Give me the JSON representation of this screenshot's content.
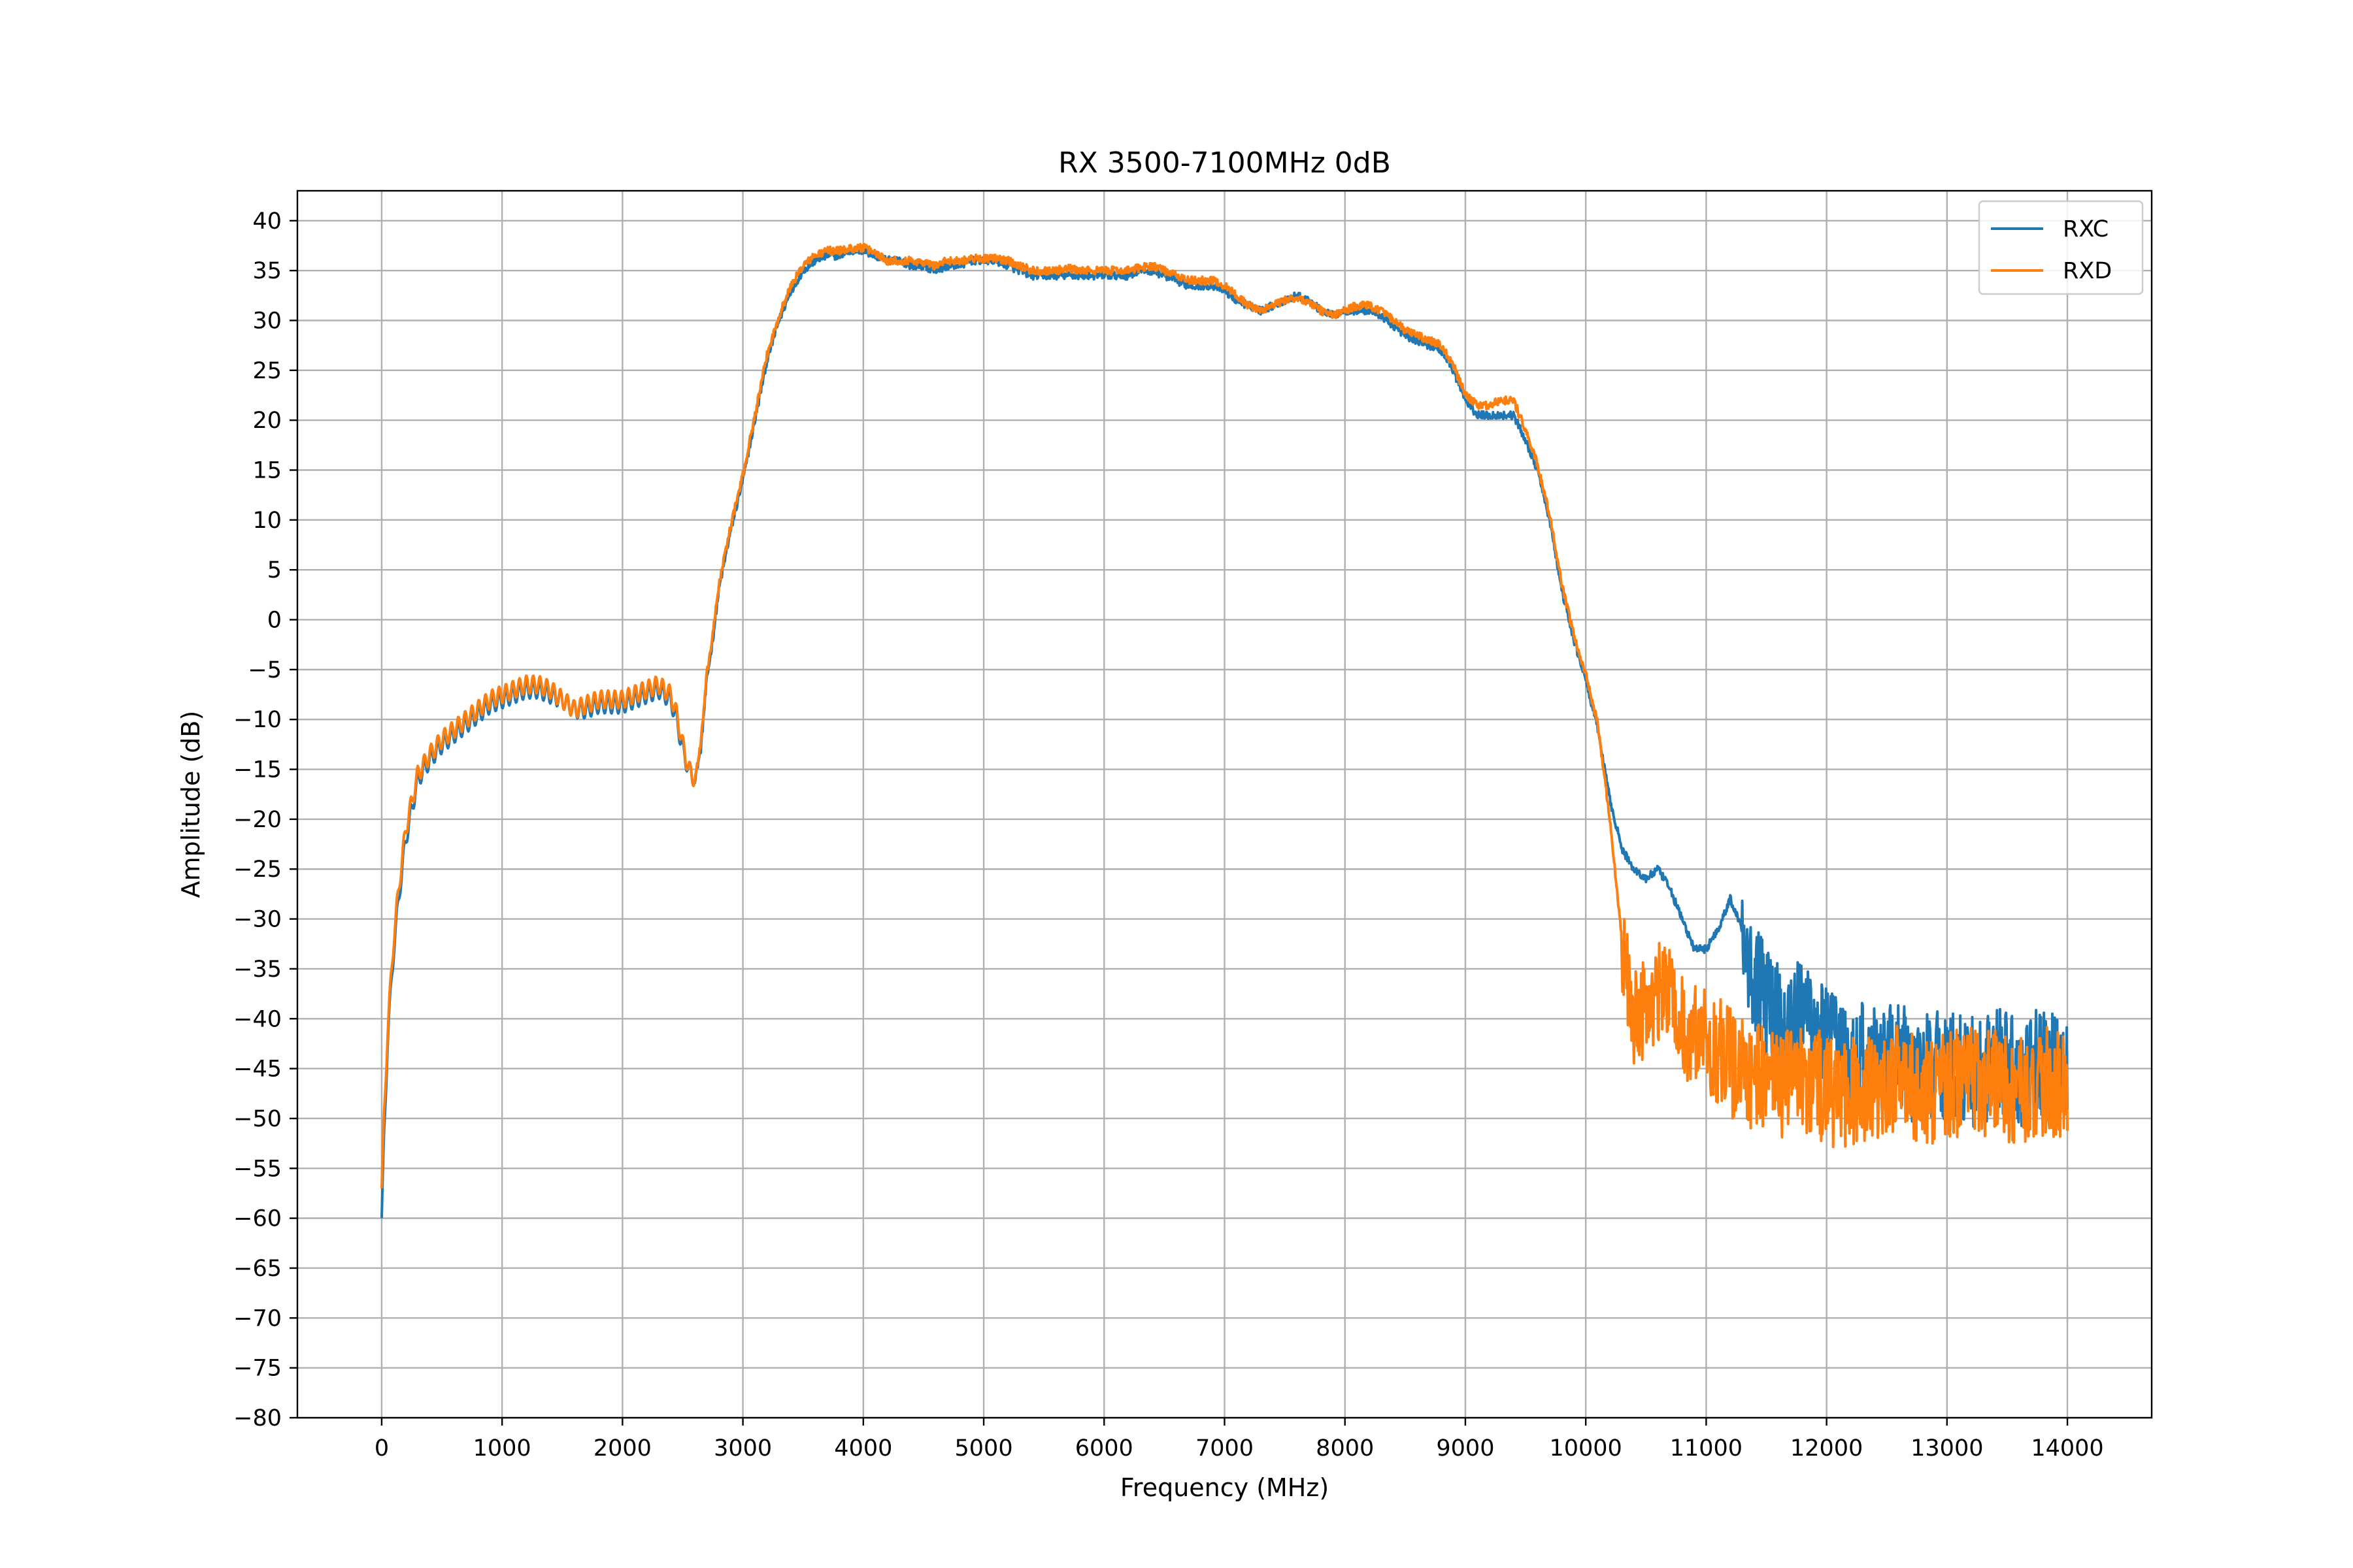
{
  "chart_data": {
    "type": "line",
    "title": "RX 3500-7100MHz 0dB",
    "xlabel": "Frequency (MHz)",
    "ylabel": "Amplitude (dB)",
    "xlim": [
      -700,
      14700
    ],
    "ylim": [
      -80,
      43
    ],
    "xticks": [
      0,
      1000,
      2000,
      3000,
      4000,
      5000,
      6000,
      7000,
      8000,
      9000,
      10000,
      11000,
      12000,
      13000,
      14000
    ],
    "xtick_labels": [
      "0",
      "1000",
      "2000",
      "3000",
      "4000",
      "5000",
      "6000",
      "7000",
      "8000",
      "9000",
      "10000",
      "11000",
      "12000",
      "13000",
      "14000"
    ],
    "yticks": [
      40,
      35,
      30,
      25,
      20,
      15,
      10,
      5,
      0,
      -5,
      -10,
      -15,
      -20,
      -25,
      -30,
      -35,
      -40,
      -45,
      -50,
      -55,
      -60,
      -65,
      -70,
      -75,
      -80
    ],
    "ytick_labels": [
      "40",
      "35",
      "30",
      "25",
      "20",
      "15",
      "10",
      "5",
      "0",
      "−5",
      "−10",
      "−15",
      "−20",
      "−25",
      "−30",
      "−35",
      "−40",
      "−45",
      "−50",
      "−55",
      "−60",
      "−65",
      "−70",
      "−75",
      "−80"
    ],
    "grid": true,
    "legend_position": "top-right",
    "series": [
      {
        "name": "RXC",
        "color": "#1f77b4",
        "points": [
          [
            0,
            -60
          ],
          [
            20,
            -52
          ],
          [
            50,
            -42
          ],
          [
            100,
            -33
          ],
          [
            150,
            -27
          ],
          [
            200,
            -22
          ],
          [
            300,
            -16
          ],
          [
            400,
            -14
          ],
          [
            500,
            -12.5
          ],
          [
            600,
            -11.5
          ],
          [
            700,
            -10.5
          ],
          [
            800,
            -9.5
          ],
          [
            900,
            -8.5
          ],
          [
            1000,
            -8
          ],
          [
            1100,
            -7.5
          ],
          [
            1200,
            -7
          ],
          [
            1300,
            -7
          ],
          [
            1400,
            -7.5
          ],
          [
            1500,
            -8
          ],
          [
            1600,
            -9
          ],
          [
            1700,
            -9
          ],
          [
            1800,
            -8.5
          ],
          [
            1900,
            -8.5
          ],
          [
            2000,
            -8.5
          ],
          [
            2100,
            -8
          ],
          [
            2200,
            -7.5
          ],
          [
            2300,
            -7
          ],
          [
            2400,
            -8
          ],
          [
            2450,
            -10
          ],
          [
            2500,
            -13
          ],
          [
            2550,
            -15
          ],
          [
            2600,
            -16
          ],
          [
            2650,
            -13
          ],
          [
            2700,
            -6
          ],
          [
            2750,
            -2
          ],
          [
            2800,
            3
          ],
          [
            2850,
            6
          ],
          [
            2900,
            9
          ],
          [
            3000,
            14
          ],
          [
            3100,
            20
          ],
          [
            3200,
            26
          ],
          [
            3300,
            30
          ],
          [
            3400,
            33
          ],
          [
            3500,
            35
          ],
          [
            3600,
            36
          ],
          [
            3700,
            36.5
          ],
          [
            3800,
            36.5
          ],
          [
            3900,
            37
          ],
          [
            4000,
            37
          ],
          [
            4100,
            36.5
          ],
          [
            4200,
            36
          ],
          [
            4300,
            36
          ],
          [
            4400,
            35.5
          ],
          [
            4500,
            35.5
          ],
          [
            4600,
            35
          ],
          [
            4700,
            35.5
          ],
          [
            4800,
            35.5
          ],
          [
            4900,
            36
          ],
          [
            5000,
            36
          ],
          [
            5100,
            36
          ],
          [
            5200,
            35.5
          ],
          [
            5300,
            35
          ],
          [
            5400,
            34.5
          ],
          [
            5500,
            34.5
          ],
          [
            5600,
            34.5
          ],
          [
            5700,
            34.5
          ],
          [
            5800,
            34.5
          ],
          [
            5900,
            34.5
          ],
          [
            6000,
            34.5
          ],
          [
            6100,
            34.5
          ],
          [
            6200,
            34.5
          ],
          [
            6300,
            35
          ],
          [
            6400,
            35
          ],
          [
            6500,
            34.5
          ],
          [
            6600,
            34
          ],
          [
            6700,
            33.5
          ],
          [
            6800,
            33.5
          ],
          [
            6900,
            33.5
          ],
          [
            7000,
            33
          ],
          [
            7100,
            32
          ],
          [
            7200,
            31.5
          ],
          [
            7300,
            31
          ],
          [
            7400,
            31.5
          ],
          [
            7500,
            32
          ],
          [
            7600,
            32.5
          ],
          [
            7700,
            32
          ],
          [
            7800,
            31
          ],
          [
            7900,
            30.5
          ],
          [
            8000,
            31
          ],
          [
            8100,
            31
          ],
          [
            8200,
            31
          ],
          [
            8300,
            30.5
          ],
          [
            8400,
            29.5
          ],
          [
            8500,
            28.5
          ],
          [
            8600,
            28
          ],
          [
            8700,
            27.5
          ],
          [
            8800,
            27
          ],
          [
            8900,
            25
          ],
          [
            9000,
            22
          ],
          [
            9100,
            20.5
          ],
          [
            9200,
            20.5
          ],
          [
            9300,
            20.5
          ],
          [
            9400,
            20.5
          ],
          [
            9500,
            18
          ],
          [
            9600,
            15
          ],
          [
            9700,
            10
          ],
          [
            9800,
            3
          ],
          [
            9900,
            -2
          ],
          [
            10000,
            -6
          ],
          [
            10100,
            -11
          ],
          [
            10200,
            -18
          ],
          [
            10300,
            -23
          ],
          [
            10400,
            -25
          ],
          [
            10500,
            -26
          ],
          [
            10600,
            -25
          ],
          [
            10700,
            -27
          ],
          [
            10800,
            -30
          ],
          [
            10900,
            -33
          ],
          [
            11000,
            -33
          ],
          [
            11100,
            -31
          ],
          [
            11200,
            -28
          ],
          [
            11300,
            -31
          ],
          [
            11400,
            -35
          ],
          [
            11500,
            -38
          ],
          [
            11600,
            -39
          ],
          [
            11700,
            -40
          ],
          [
            11800,
            -38
          ],
          [
            11900,
            -40
          ],
          [
            12000,
            -42
          ],
          [
            12200,
            -44
          ],
          [
            12400,
            -43
          ],
          [
            12600,
            -44
          ],
          [
            12800,
            -45
          ],
          [
            13000,
            -44
          ],
          [
            13200,
            -45
          ],
          [
            13400,
            -44
          ],
          [
            13600,
            -45
          ],
          [
            13800,
            -44
          ],
          [
            14000,
            -45
          ]
        ],
        "noise_from": 11300
      },
      {
        "name": "RXD",
        "color": "#ff7f0e",
        "points": [
          [
            0,
            -57
          ],
          [
            20,
            -50
          ],
          [
            50,
            -41
          ],
          [
            100,
            -32
          ],
          [
            150,
            -26
          ],
          [
            200,
            -21
          ],
          [
            300,
            -15.5
          ],
          [
            400,
            -13.5
          ],
          [
            500,
            -12
          ],
          [
            600,
            -11
          ],
          [
            700,
            -10
          ],
          [
            800,
            -9
          ],
          [
            900,
            -8
          ],
          [
            1000,
            -7.5
          ],
          [
            1100,
            -7
          ],
          [
            1200,
            -6.5
          ],
          [
            1300,
            -6.5
          ],
          [
            1400,
            -7
          ],
          [
            1500,
            -8
          ],
          [
            1600,
            -9
          ],
          [
            1700,
            -8.5
          ],
          [
            1800,
            -8
          ],
          [
            1900,
            -8
          ],
          [
            2000,
            -8
          ],
          [
            2100,
            -7.5
          ],
          [
            2200,
            -7
          ],
          [
            2300,
            -6.5
          ],
          [
            2400,
            -7.5
          ],
          [
            2450,
            -9.5
          ],
          [
            2500,
            -12.5
          ],
          [
            2550,
            -15
          ],
          [
            2600,
            -16
          ],
          [
            2650,
            -12.5
          ],
          [
            2700,
            -5.5
          ],
          [
            2750,
            -1.5
          ],
          [
            2800,
            3.5
          ],
          [
            2850,
            6.5
          ],
          [
            2900,
            9.5
          ],
          [
            3000,
            14.5
          ],
          [
            3100,
            20.5
          ],
          [
            3200,
            26.5
          ],
          [
            3300,
            30.5
          ],
          [
            3400,
            33.5
          ],
          [
            3500,
            35.5
          ],
          [
            3600,
            36.5
          ],
          [
            3700,
            37
          ],
          [
            3800,
            37
          ],
          [
            3900,
            37.2
          ],
          [
            4000,
            37.3
          ],
          [
            4100,
            36.8
          ],
          [
            4200,
            36
          ],
          [
            4300,
            36
          ],
          [
            4400,
            36
          ],
          [
            4500,
            35.8
          ],
          [
            4600,
            35.5
          ],
          [
            4700,
            36
          ],
          [
            4800,
            36
          ],
          [
            4900,
            36.2
          ],
          [
            5000,
            36.2
          ],
          [
            5100,
            36.2
          ],
          [
            5200,
            36
          ],
          [
            5300,
            35.5
          ],
          [
            5400,
            35
          ],
          [
            5500,
            35
          ],
          [
            5600,
            35
          ],
          [
            5700,
            35.2
          ],
          [
            5800,
            35
          ],
          [
            5900,
            35
          ],
          [
            6000,
            35
          ],
          [
            6100,
            35
          ],
          [
            6200,
            35
          ],
          [
            6300,
            35.3
          ],
          [
            6400,
            35.5
          ],
          [
            6500,
            35
          ],
          [
            6600,
            34.5
          ],
          [
            6700,
            34
          ],
          [
            6800,
            34
          ],
          [
            6900,
            34
          ],
          [
            7000,
            33.5
          ],
          [
            7100,
            32.5
          ],
          [
            7200,
            31.5
          ],
          [
            7300,
            31
          ],
          [
            7400,
            31.5
          ],
          [
            7500,
            32
          ],
          [
            7600,
            32.3
          ],
          [
            7700,
            31.8
          ],
          [
            7800,
            31
          ],
          [
            7900,
            30.5
          ],
          [
            8000,
            31
          ],
          [
            8100,
            31.5
          ],
          [
            8200,
            31.5
          ],
          [
            8300,
            31
          ],
          [
            8400,
            30
          ],
          [
            8500,
            29
          ],
          [
            8600,
            28.5
          ],
          [
            8700,
            28
          ],
          [
            8800,
            27.5
          ],
          [
            8900,
            25.5
          ],
          [
            9000,
            22.5
          ],
          [
            9100,
            21.5
          ],
          [
            9200,
            21.5
          ],
          [
            9300,
            22
          ],
          [
            9400,
            22
          ],
          [
            9500,
            19
          ],
          [
            9600,
            15.5
          ],
          [
            9700,
            10.5
          ],
          [
            9800,
            3.5
          ],
          [
            9900,
            -1.5
          ],
          [
            10000,
            -5.5
          ],
          [
            10100,
            -10.5
          ],
          [
            10200,
            -20
          ],
          [
            10300,
            -32
          ],
          [
            10400,
            -40
          ],
          [
            10500,
            -38
          ],
          [
            10600,
            -37
          ],
          [
            10700,
            -38
          ],
          [
            10800,
            -40
          ],
          [
            10900,
            -41
          ],
          [
            11000,
            -42
          ],
          [
            11100,
            -43
          ],
          [
            11200,
            -44
          ],
          [
            11300,
            -45
          ],
          [
            11400,
            -45
          ],
          [
            11500,
            -46
          ],
          [
            11600,
            -46
          ],
          [
            11800,
            -46
          ],
          [
            12000,
            -47
          ],
          [
            12200,
            -47
          ],
          [
            12400,
            -47
          ],
          [
            12600,
            -46
          ],
          [
            12800,
            -47
          ],
          [
            13000,
            -46
          ],
          [
            13200,
            -46
          ],
          [
            13400,
            -46
          ],
          [
            13600,
            -47
          ],
          [
            13800,
            -46
          ],
          [
            14000,
            -46
          ]
        ],
        "noise_from": 10300
      }
    ]
  }
}
